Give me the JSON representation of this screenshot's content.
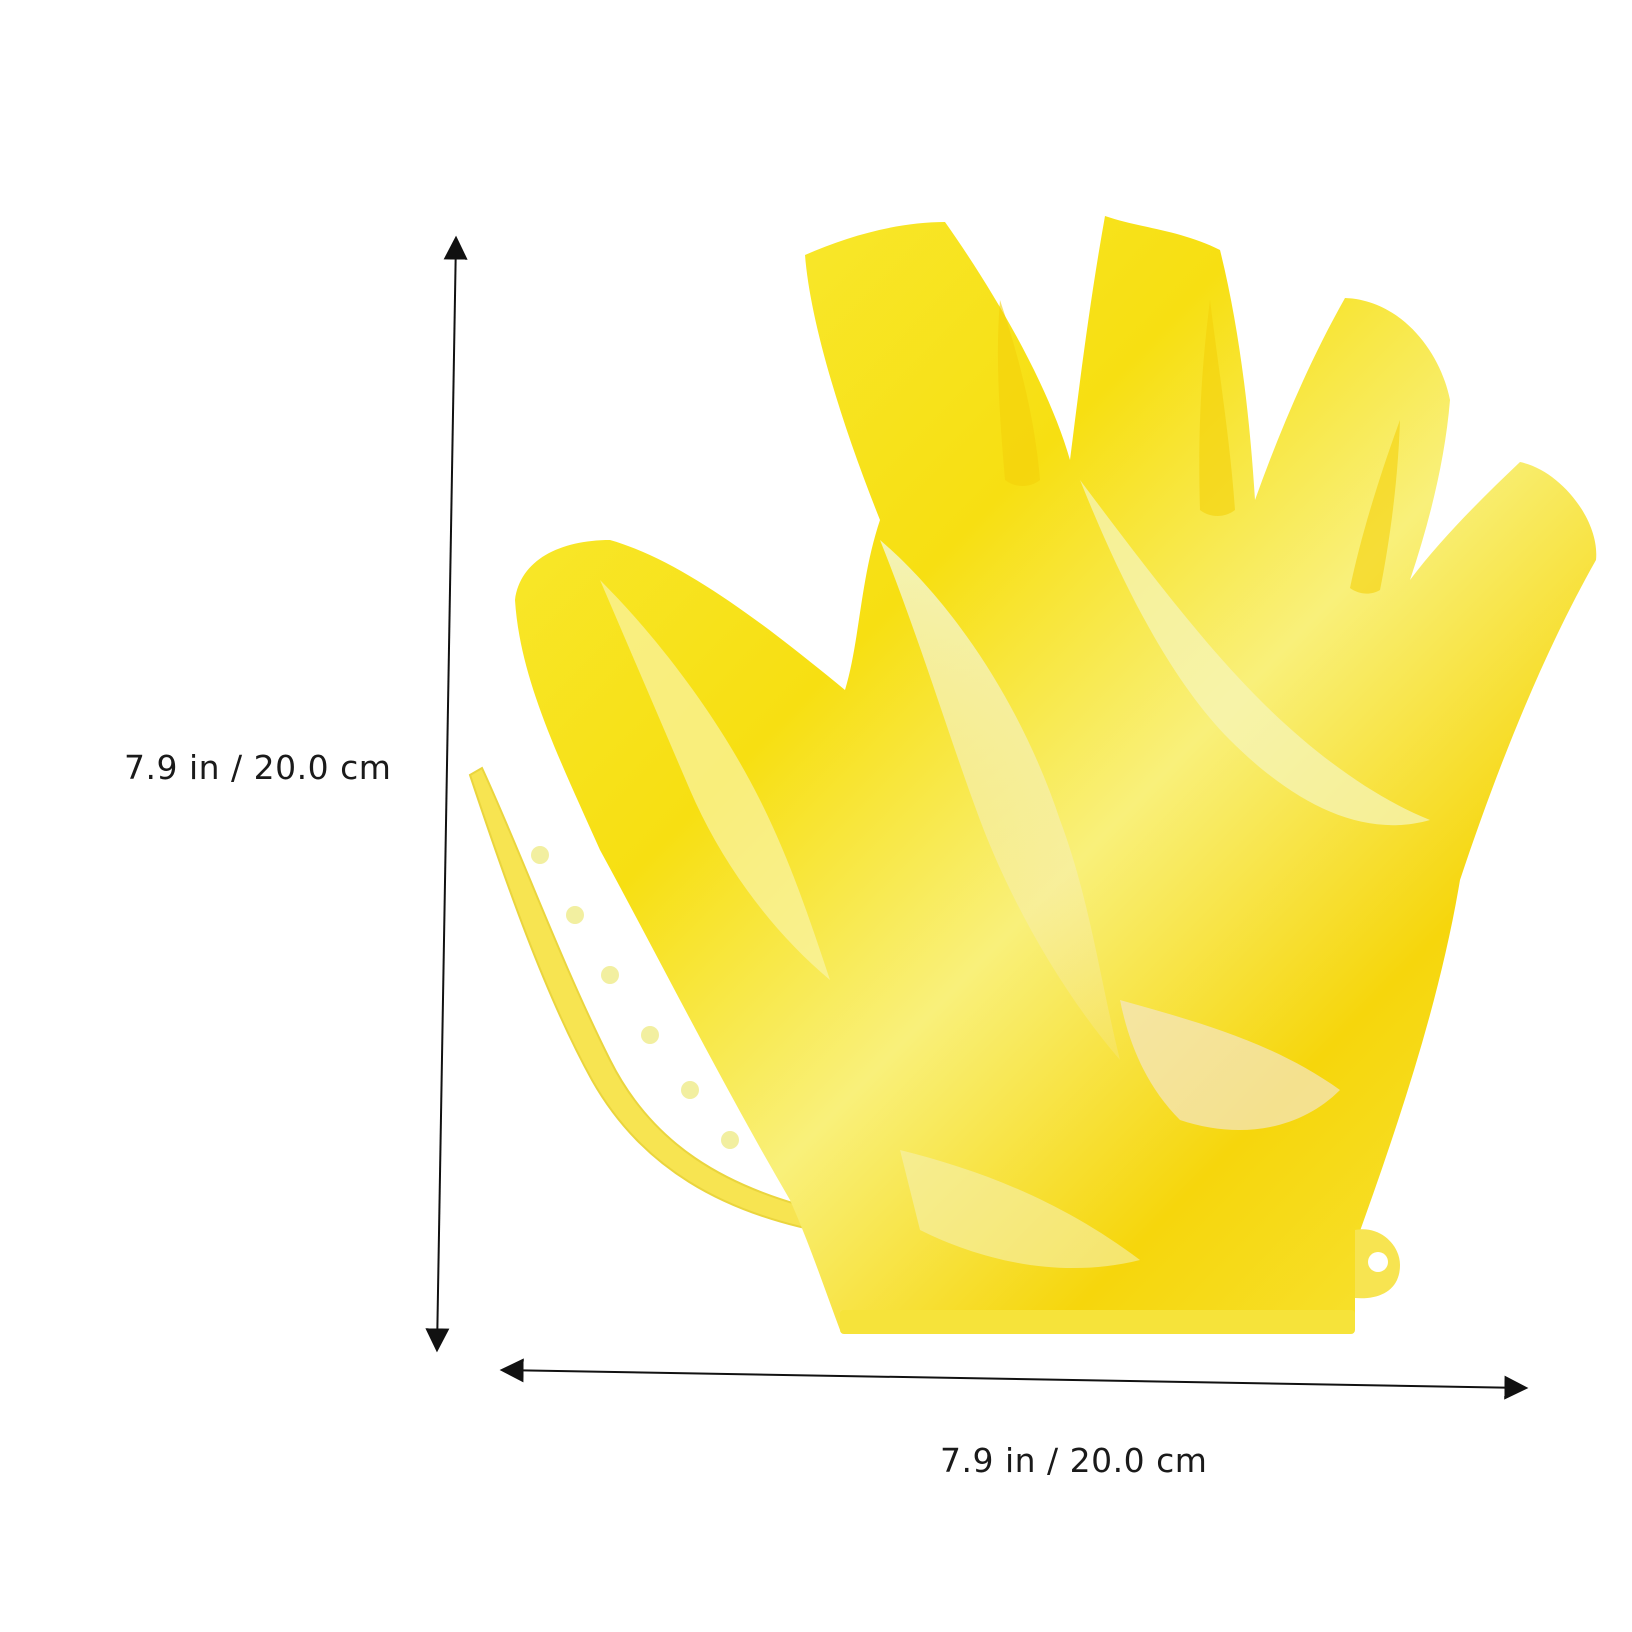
{
  "dimensions": {
    "height_label": "7.9 in / 20.0 cm",
    "width_label": "7.9 in / 20.0 cm"
  },
  "product": {
    "icon": "webbed-swim-glove-icon",
    "primary_color": "#F7E21B",
    "accent_color": "#F5D400",
    "highlight_color": "#F4F7B0"
  },
  "arrow_color": "#111111"
}
